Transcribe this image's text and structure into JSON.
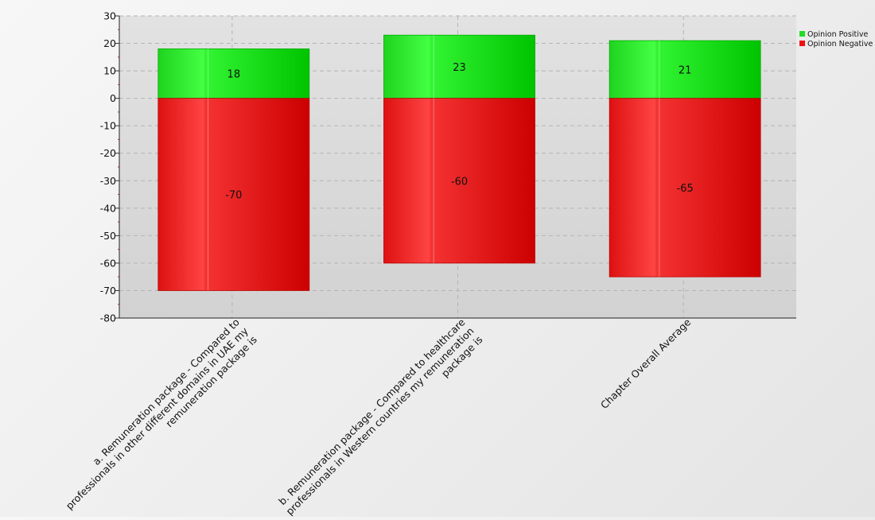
{
  "chart_data": {
    "type": "bar",
    "stacked": true,
    "categories": [
      "a. Remuneration package - Compared to professionals in other different domains in UAE my remuneration package is",
      "b. Remuneration package - Compared to healthcare professionals in Western countries my remuneration package is",
      "Chapter Overall Average"
    ],
    "category_label_lines": [
      [
        "a. Remuneration package - Compared to",
        "professionals in other different domains in UAE my",
        "remuneration package is"
      ],
      [
        "b. Remuneration package - Compared to healthcare",
        "professionals in Western countries my remuneration",
        "package is"
      ],
      [
        "Chapter Overall Average"
      ]
    ],
    "series": [
      {
        "name": "Opinion Positive",
        "values": [
          18,
          23,
          21
        ],
        "color": "#22dd22"
      },
      {
        "name": "Opinion Negative",
        "values": [
          -70,
          -60,
          -65
        ],
        "color": "#ee1111"
      }
    ],
    "ylim": [
      -80,
      30
    ],
    "yticks": [
      30,
      20,
      10,
      0,
      -10,
      -20,
      -30,
      -40,
      -50,
      -60,
      -70,
      -80
    ],
    "grid": true,
    "legend_position": "top-right",
    "title": "",
    "xlabel": "",
    "ylabel": ""
  }
}
